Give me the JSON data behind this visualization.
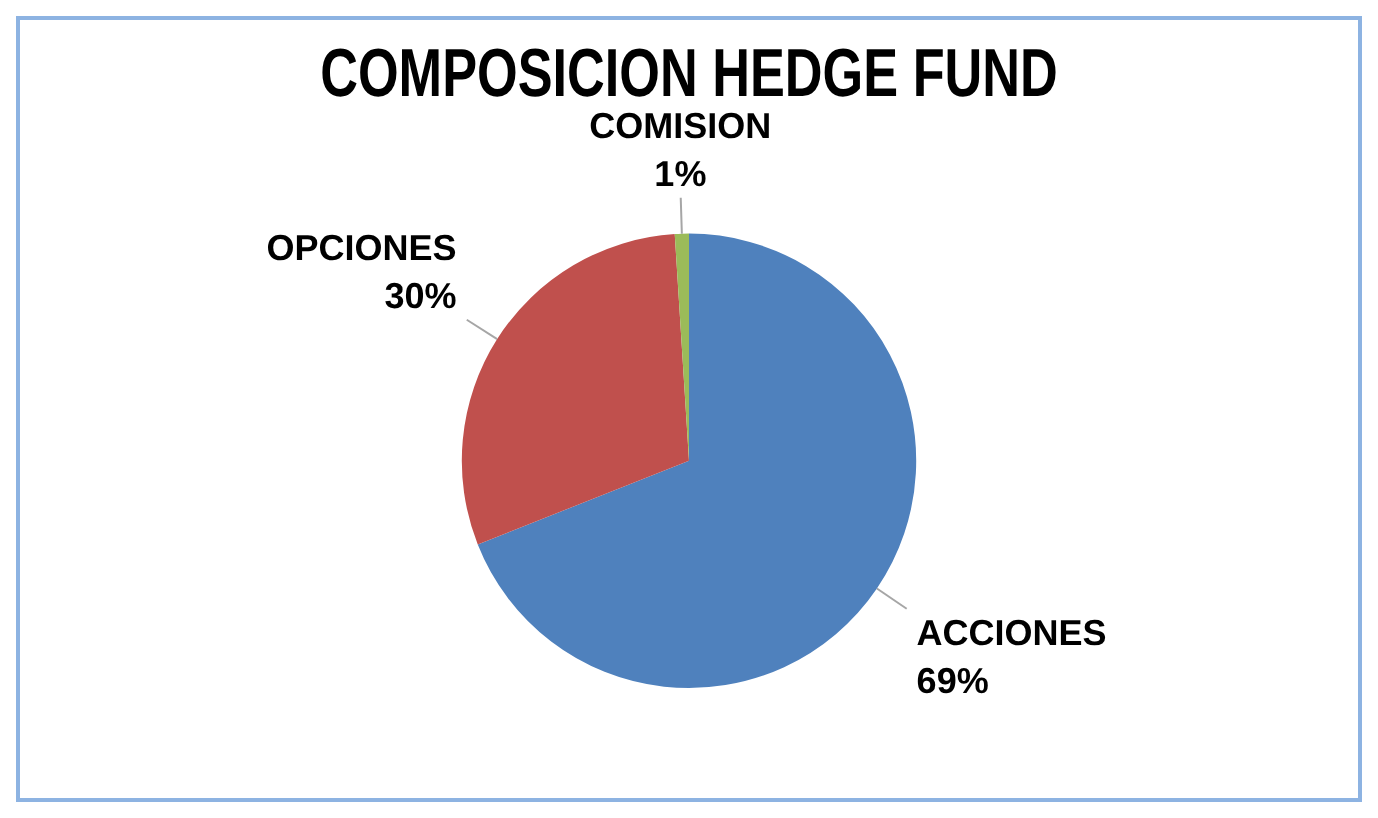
{
  "chart_data": {
    "type": "pie",
    "title": "COMPOSICION HEDGE FUND",
    "categories": [
      "ACCIONES",
      "OPCIONES",
      "COMISION"
    ],
    "values": [
      69,
      30,
      1
    ],
    "colors": [
      "#4f81bd",
      "#c0504d",
      "#9bbb59"
    ],
    "value_labels": [
      "69%",
      "30%",
      "1%"
    ],
    "legend": false
  }
}
